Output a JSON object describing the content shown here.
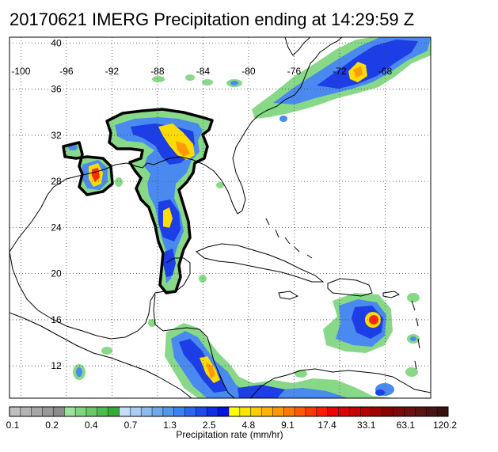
{
  "title": "20170621 IMERG Precipitation ending at 14:29:59 Z",
  "map": {
    "lon_range": [
      -101,
      -64
    ],
    "lat_range": [
      9.2,
      40.5
    ],
    "lon_ticks": [
      -100,
      -96,
      -92,
      -88,
      -84,
      -80,
      -76,
      -72,
      -68
    ],
    "lat_ticks": [
      12,
      16,
      20,
      24,
      28,
      32,
      36,
      40
    ],
    "lon_labels": [
      "-100",
      "-96",
      "-92",
      "-88",
      "-84",
      "-80",
      "-76",
      "-72",
      "-68"
    ],
    "lat_labels": [
      "12",
      "16",
      "20",
      "24",
      "28",
      "32",
      "36",
      "40"
    ],
    "grid": true
  },
  "colorbar": {
    "title": "Precipitation rate (mm/hr)",
    "labels": [
      "0.1",
      "0.2",
      "0.4",
      "0.7",
      "1.3",
      "2.5",
      "4.8",
      "9.1",
      "17.4",
      "33.1",
      "63.1",
      "120.2"
    ],
    "colors": [
      "#bfbfbf",
      "#b3b3b3",
      "#a6a6a6",
      "#999999",
      "#8c8c8c",
      "#9be39b",
      "#7fd67f",
      "#66c966",
      "#4dbc4d",
      "#35ad35",
      "#c6ddf7",
      "#a9cdf3",
      "#8cbcef",
      "#6eaaea",
      "#5199e6",
      "#3b82f0",
      "#2c66ee",
      "#1d4aeb",
      "#0e2ee8",
      "#0012e4",
      "#ffff00",
      "#ffe600",
      "#ffcc00",
      "#ffb300",
      "#ff9900",
      "#ff7a00",
      "#ff5a00",
      "#ff3a00",
      "#ff1a00",
      "#f00000",
      "#dc0000",
      "#c80000",
      "#b40000",
      "#a00000",
      "#8c0000",
      "#7a0a0a",
      "#6a1010",
      "#5a1414",
      "#4a1414",
      "#3a1010"
    ]
  },
  "colors": {
    "light": "#87d887",
    "blue1": "#4a8af0",
    "blue2": "#1d3ee6",
    "yellow": "#ffdc00",
    "orange": "#ff9a00",
    "red": "#ff2a00",
    "land_outline": "#000000",
    "grid": "#444444",
    "contour": "#000000"
  }
}
